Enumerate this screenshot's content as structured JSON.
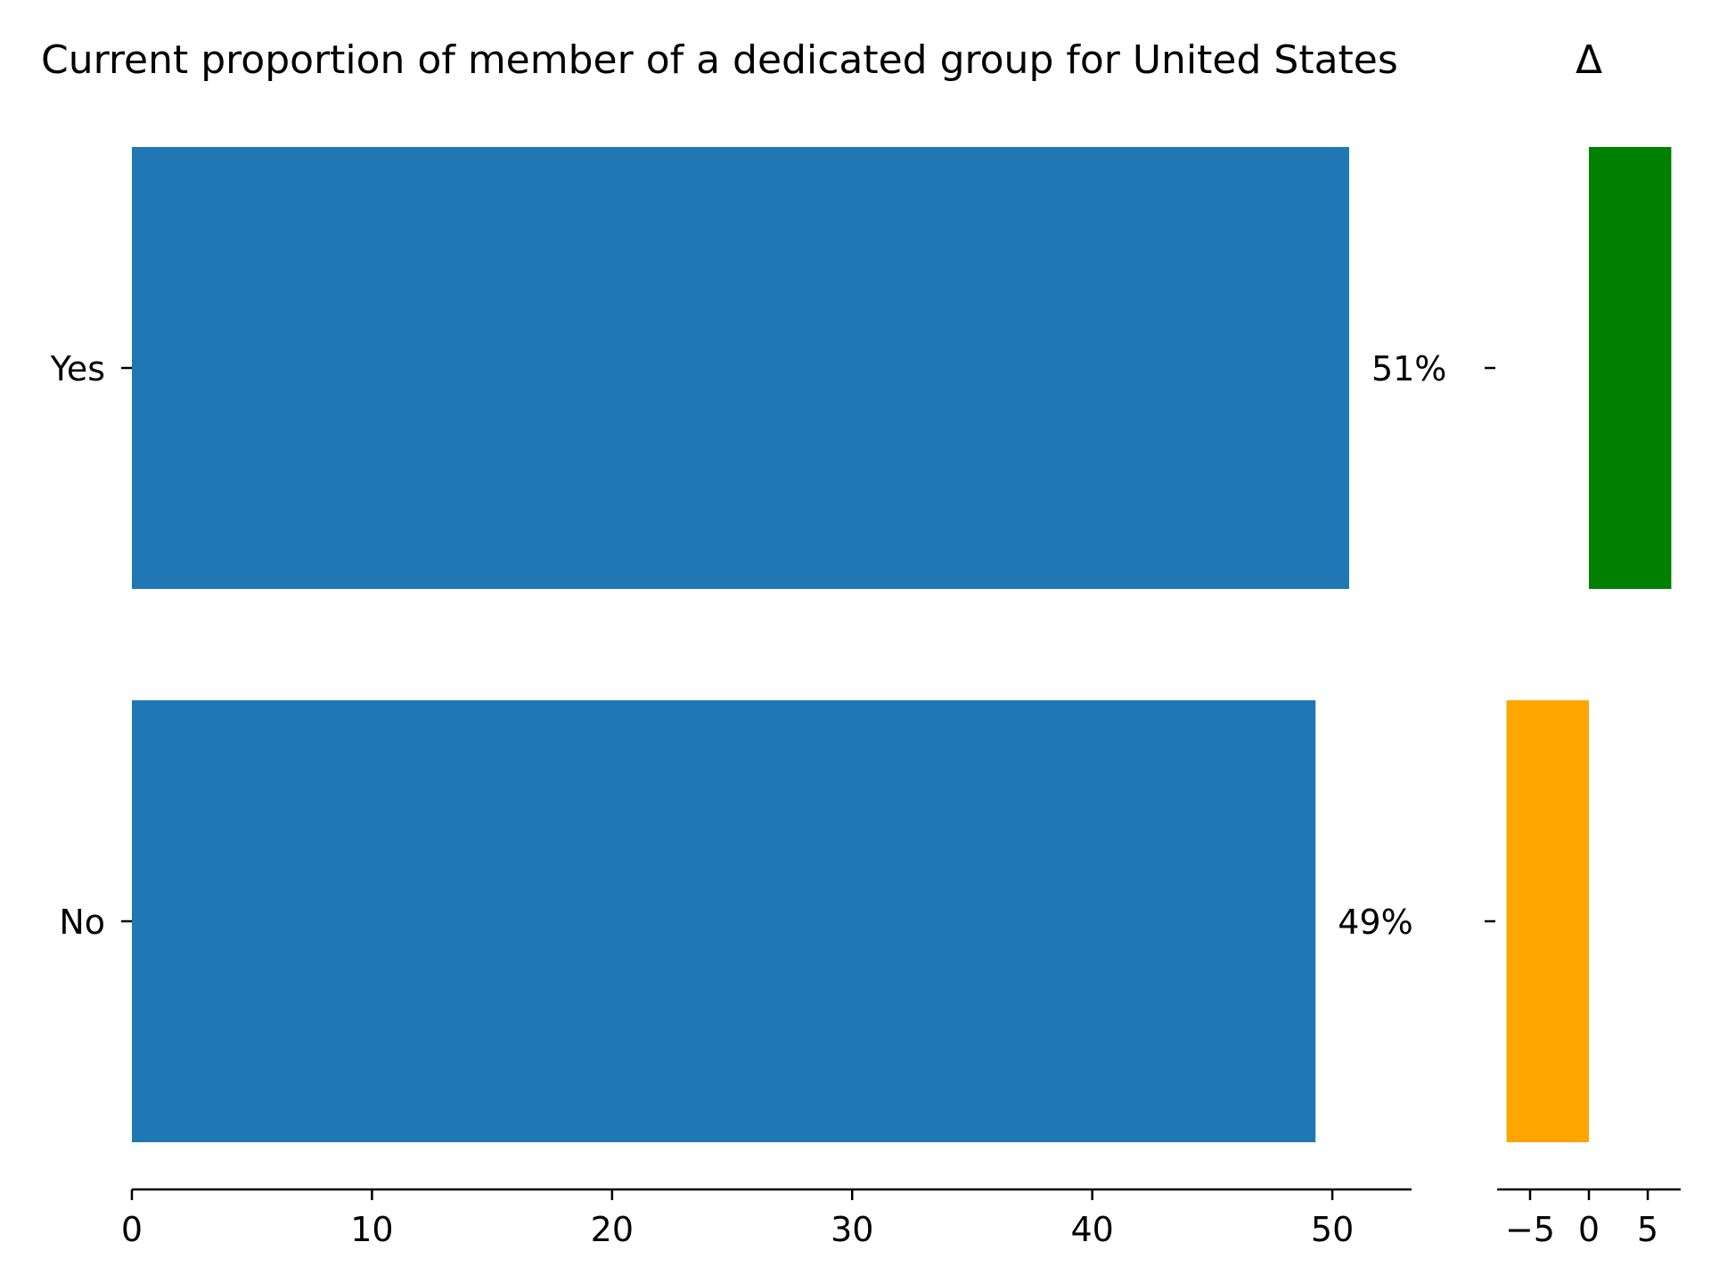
{
  "chart_data": [
    {
      "type": "bar",
      "orientation": "horizontal",
      "title": "Current proportion of member of a dedicated group for United States",
      "categories": [
        "Yes",
        "No"
      ],
      "values": [
        50.7,
        49.3
      ],
      "value_labels": [
        "51%",
        "49%"
      ],
      "xlabel": "",
      "ylabel": "",
      "xlim": [
        0,
        53.3
      ],
      "xticks": [
        0,
        10,
        20,
        30,
        40,
        50
      ],
      "xtick_labels": [
        "0",
        "10",
        "20",
        "30",
        "40",
        "50"
      ],
      "grid": false,
      "legend": "none",
      "colors": {
        "bar": "#1f77b4"
      }
    },
    {
      "type": "bar",
      "orientation": "horizontal",
      "title": "Δ",
      "categories": [
        "Yes",
        "No"
      ],
      "values": [
        7,
        -7
      ],
      "xlabel": "",
      "ylabel": "",
      "xlim": [
        -7.8,
        7.8
      ],
      "xticks": [
        -5,
        0,
        5
      ],
      "xtick_labels": [
        "−5",
        "0",
        "5"
      ],
      "grid": false,
      "legend": "none",
      "colors": {
        "positive": "#008000",
        "negative": "#ffa500"
      }
    }
  ]
}
